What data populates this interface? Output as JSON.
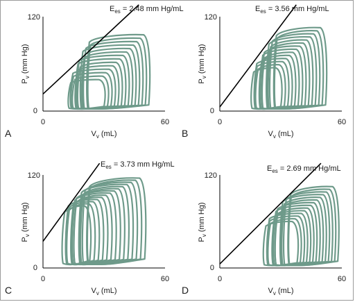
{
  "figure": {
    "colors": {
      "loops": "#6e9a8a",
      "line": "#000000",
      "frame": "#9a9a9a"
    }
  },
  "chart_data": [
    {
      "type": "line",
      "panel_label": "A",
      "xlabel": "V_v (mL)",
      "ylabel": "P_v (mm Hg)",
      "xlim": [
        0,
        60
      ],
      "ylim": [
        0,
        120
      ],
      "x_ticks": [
        "0",
        "60"
      ],
      "y_ticks": [
        "0",
        "120"
      ],
      "espvr_label": "E_es = 2.48 mm Hg/mL",
      "espvr_slope": 2.48,
      "espvr_intercept_v": -9,
      "series": [
        {
          "type": "pv_loops",
          "count": 14,
          "edv_max": 52,
          "edv_min": 30,
          "esv_max": 22,
          "esv_min": 13,
          "pes_max": 97,
          "pes_min": 40,
          "edp": 6
        }
      ]
    },
    {
      "type": "line",
      "panel_label": "B",
      "xlabel": "V_v (mL)",
      "ylabel": "P_v (mm Hg)",
      "xlim": [
        0,
        60
      ],
      "ylim": [
        0,
        120
      ],
      "x_ticks": [
        "0",
        "60"
      ],
      "y_ticks": [
        "0",
        "120"
      ],
      "espvr_label": "E_es = 3.56 mm Hg/mL",
      "espvr_slope": 3.56,
      "espvr_intercept_v": -1.5,
      "series": [
        {
          "type": "pv_loops",
          "count": 14,
          "edv_max": 52,
          "edv_min": 30,
          "esv_max": 27,
          "esv_min": 16,
          "pes_max": 106,
          "pes_min": 55,
          "edp": 6
        }
      ]
    },
    {
      "type": "line",
      "panel_label": "C",
      "xlabel": "V_v (mL)",
      "ylabel": "P_v (mm Hg)",
      "xlim": [
        0,
        60
      ],
      "ylim": [
        0,
        120
      ],
      "x_ticks": [
        "0",
        "60"
      ],
      "y_ticks": [
        "0",
        "120"
      ],
      "espvr_label": "E_es = 3.73 mm Hg/mL",
      "espvr_slope": 3.73,
      "espvr_intercept_v": -9.5,
      "series": [
        {
          "type": "pv_loops",
          "count": 14,
          "edv_max": 50,
          "edv_min": 23,
          "esv_max": 22,
          "esv_min": 10,
          "pes_max": 116,
          "pes_min": 80,
          "edp": 10
        }
      ]
    },
    {
      "type": "line",
      "panel_label": "D",
      "xlabel": "V_v (mL)",
      "ylabel": "P_v (mm Hg)",
      "xlim": [
        0,
        60
      ],
      "ylim": [
        0,
        120
      ],
      "x_ticks": [
        "0",
        "60"
      ],
      "y_ticks": [
        "0",
        "120"
      ],
      "espvr_label": "E_es = 2.69 mm Hg/mL",
      "espvr_slope": 2.69,
      "espvr_intercept_v": -2,
      "series": [
        {
          "type": "pv_loops",
          "count": 14,
          "edv_max": 58,
          "edv_min": 38,
          "esv_max": 34,
          "esv_min": 22,
          "pes_max": 105,
          "pes_min": 60,
          "edp": 7
        }
      ]
    }
  ]
}
